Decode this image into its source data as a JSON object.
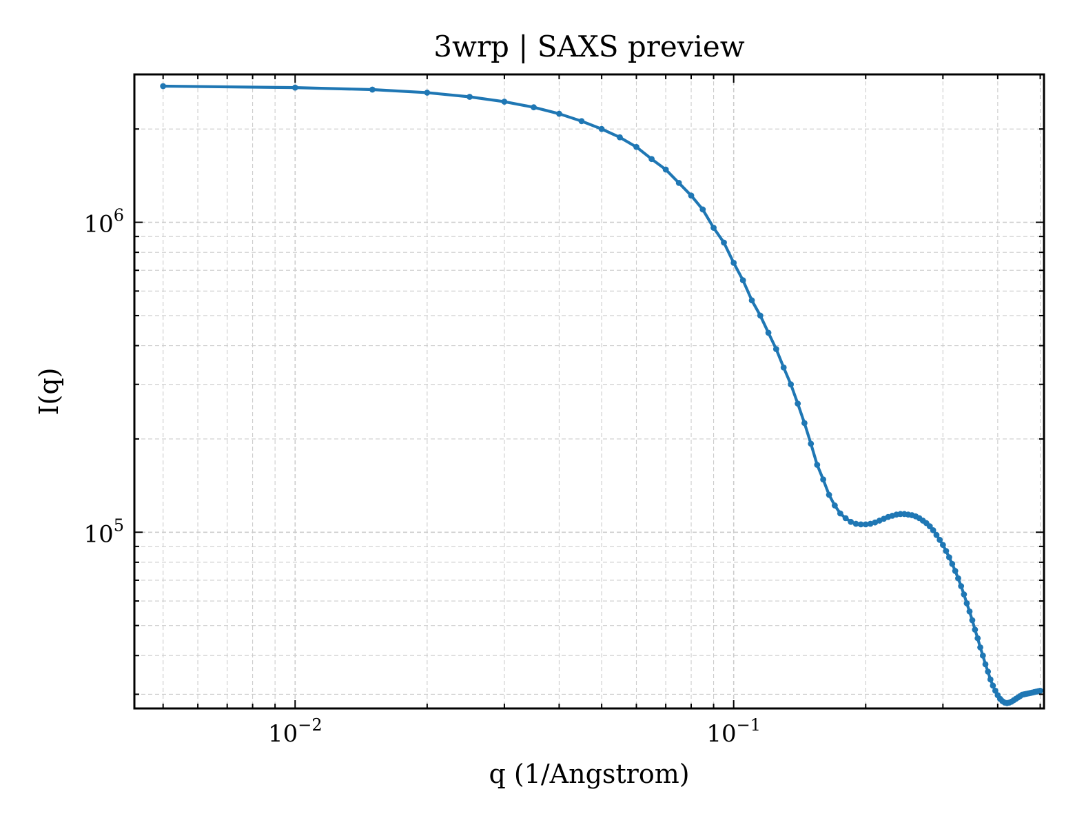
{
  "chart_data": {
    "type": "line",
    "title": "3wrp | SAXS preview",
    "xlabel": "q (1/Angstrom)",
    "ylabel": "I(q)",
    "xscale": "log",
    "yscale": "log",
    "xlim": [
      0.0043,
      0.51
    ],
    "ylim": [
      27000,
      3000000
    ],
    "grid": true,
    "legend": "none",
    "x_ticks": [
      {
        "base": "10",
        "exp": "−2",
        "value": 0.01
      },
      {
        "base": "10",
        "exp": "−1",
        "value": 0.1
      }
    ],
    "y_ticks": [
      {
        "base": "10",
        "exp": "5",
        "value": 100000
      },
      {
        "base": "10",
        "exp": "6",
        "value": 1000000
      }
    ],
    "series": [
      {
        "color": "#1f77b4",
        "x": [
          0.005,
          0.01,
          0.015,
          0.02,
          0.025,
          0.03,
          0.035,
          0.04,
          0.045,
          0.05,
          0.055,
          0.06,
          0.065,
          0.07,
          0.075,
          0.08,
          0.085,
          0.09,
          0.095,
          0.1,
          0.105,
          0.11,
          0.115,
          0.12,
          0.125,
          0.13,
          0.135,
          0.14,
          0.145,
          0.15,
          0.155,
          0.16,
          0.165,
          0.17,
          0.175,
          0.18,
          0.185,
          0.19,
          0.195,
          0.2,
          0.205,
          0.21,
          0.215,
          0.22,
          0.225,
          0.23,
          0.235,
          0.24,
          0.245,
          0.25,
          0.255,
          0.26,
          0.265,
          0.27,
          0.275,
          0.28,
          0.285,
          0.29,
          0.295,
          0.3,
          0.305,
          0.31,
          0.315,
          0.32,
          0.325,
          0.33,
          0.335,
          0.34,
          0.345,
          0.35,
          0.355,
          0.36,
          0.365,
          0.37,
          0.375,
          0.38,
          0.385,
          0.39,
          0.395,
          0.4,
          0.405,
          0.41,
          0.415,
          0.42,
          0.425,
          0.43,
          0.435,
          0.44,
          0.445,
          0.45,
          0.455,
          0.46,
          0.465,
          0.47,
          0.475,
          0.48,
          0.485,
          0.49,
          0.495,
          0.5
        ],
        "y": [
          2750000,
          2720000,
          2680000,
          2620000,
          2540000,
          2450000,
          2350000,
          2240000,
          2120000,
          2000000,
          1880000,
          1750000,
          1600000,
          1480000,
          1340000,
          1220000,
          1100000,
          960000,
          860000,
          740000,
          650000,
          560000,
          500000,
          440000,
          390000,
          340000,
          300000,
          260000,
          225000,
          193000,
          165000,
          148000,
          132000,
          122000,
          115000,
          111000,
          108000,
          106500,
          106000,
          106000,
          106500,
          107500,
          109000,
          110500,
          112000,
          113000,
          114000,
          114500,
          114500,
          114000,
          113500,
          112500,
          111000,
          109000,
          107000,
          104500,
          101500,
          98000,
          94500,
          91000,
          87000,
          83000,
          79000,
          75000,
          71000,
          67000,
          63000,
          59000,
          55500,
          52000,
          48500,
          45500,
          42500,
          40000,
          37500,
          35500,
          33500,
          32000,
          30800,
          29800,
          29000,
          28500,
          28200,
          28100,
          28200,
          28400,
          28700,
          29000,
          29300,
          29600,
          29900,
          30000,
          30100,
          30200,
          30300,
          30400,
          30500,
          30600,
          30700,
          30800
        ]
      }
    ]
  }
}
